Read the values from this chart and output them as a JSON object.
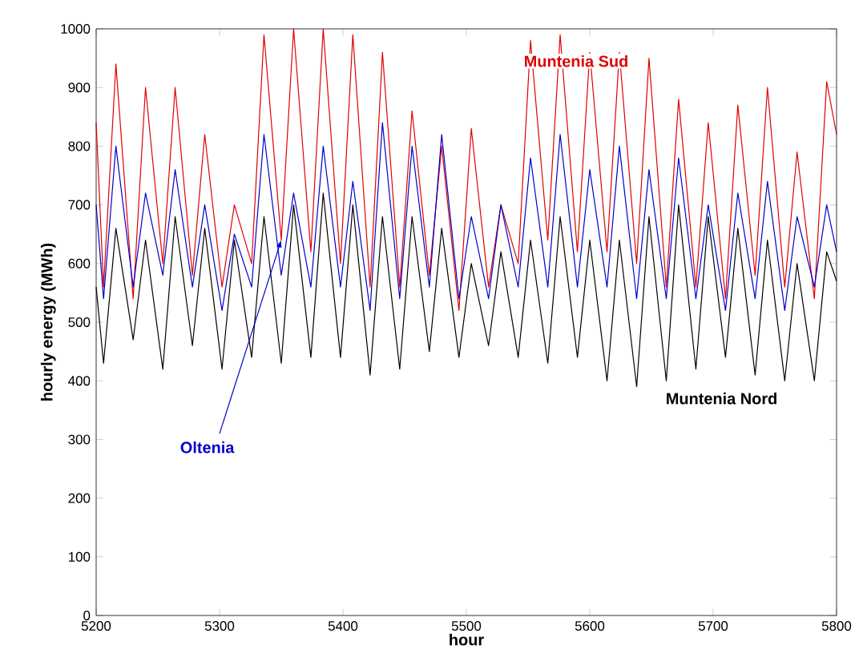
{
  "chart_data": {
    "type": "line",
    "xlabel": "hour",
    "ylabel": "hourly energy (MWh)",
    "x": [
      5200,
      5206,
      5216,
      5230,
      5240,
      5254,
      5264,
      5278,
      5288,
      5302,
      5312,
      5326,
      5336,
      5350,
      5360,
      5374,
      5384,
      5398,
      5408,
      5422,
      5432,
      5446,
      5456,
      5470,
      5480,
      5494,
      5504,
      5518,
      5528,
      5542,
      5552,
      5566,
      5576,
      5590,
      5600,
      5614,
      5624,
      5638,
      5648,
      5662,
      5672,
      5686,
      5696,
      5710,
      5720,
      5734,
      5744,
      5758,
      5768,
      5782,
      5792,
      5800
    ],
    "series": [
      {
        "name": "Muntenia Sud",
        "color": "#e00000",
        "values": [
          840,
          560,
          940,
          540,
          900,
          600,
          900,
          580,
          820,
          560,
          700,
          600,
          990,
          640,
          1000,
          620,
          1000,
          600,
          990,
          560,
          960,
          560,
          860,
          580,
          800,
          520,
          830,
          560,
          700,
          600,
          980,
          640,
          990,
          620,
          960,
          620,
          960,
          600,
          950,
          560,
          880,
          560,
          840,
          540,
          870,
          580,
          900,
          560,
          790,
          540,
          910,
          820
        ]
      },
      {
        "name": "Oltenia",
        "color": "#0000cc",
        "values": [
          700,
          540,
          800,
          560,
          720,
          580,
          760,
          560,
          700,
          520,
          650,
          560,
          820,
          580,
          720,
          560,
          800,
          560,
          740,
          520,
          840,
          540,
          800,
          560,
          820,
          540,
          680,
          540,
          700,
          560,
          780,
          560,
          820,
          560,
          760,
          560,
          800,
          540,
          760,
          540,
          780,
          540,
          700,
          520,
          720,
          540,
          740,
          520,
          680,
          560,
          700,
          620
        ]
      },
      {
        "name": "Muntenia Nord",
        "color": "#000000",
        "values": [
          560,
          430,
          660,
          470,
          640,
          420,
          680,
          460,
          660,
          420,
          640,
          440,
          680,
          430,
          700,
          440,
          720,
          440,
          700,
          410,
          680,
          420,
          680,
          450,
          660,
          440,
          600,
          460,
          620,
          440,
          640,
          430,
          680,
          440,
          640,
          400,
          640,
          390,
          680,
          400,
          700,
          420,
          680,
          440,
          660,
          410,
          640,
          400,
          600,
          400,
          620,
          570
        ]
      }
    ],
    "xlim": [
      5200,
      5800
    ],
    "xticks": [
      5200,
      5300,
      5400,
      5500,
      5600,
      5700,
      5800
    ],
    "ylim": [
      0,
      1000
    ],
    "yticks": [
      0,
      100,
      200,
      300,
      400,
      500,
      600,
      700,
      800,
      900,
      1000
    ],
    "grid": false,
    "legend": false,
    "line_style": "solid",
    "marker": "none"
  }
}
